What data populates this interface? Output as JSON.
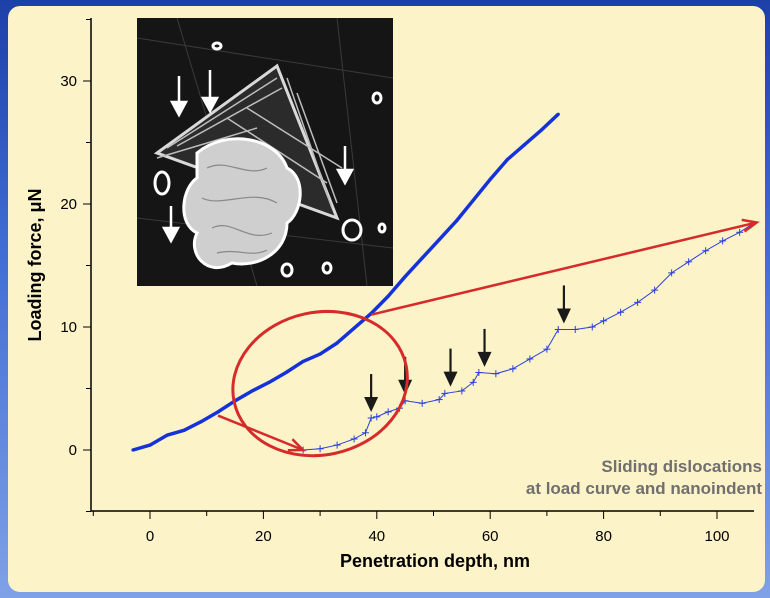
{
  "chart_data": {
    "type": "line",
    "xlabel": "Penetration depth, nm",
    "ylabel": "Loading force, μN",
    "xlim": [
      -10,
      107
    ],
    "ylim": [
      -5,
      35
    ],
    "x_ticks": [
      0,
      20,
      40,
      60,
      80,
      100
    ],
    "y_ticks": [
      0,
      10,
      20,
      30
    ],
    "grid": false,
    "series": [
      {
        "color": "#1432d8",
        "style": "solid-thick",
        "x": [
          -3,
          0,
          3,
          6,
          9,
          12,
          15,
          18,
          21,
          24,
          27,
          30,
          33,
          36,
          39,
          42,
          45,
          48,
          51,
          54,
          57,
          60,
          63,
          66,
          69,
          72
        ],
        "y": [
          0,
          0.4,
          1.2,
          1.6,
          2.3,
          3.1,
          4.0,
          4.8,
          5.5,
          6.3,
          7.2,
          7.8,
          8.7,
          9.9,
          11.1,
          12.5,
          14.1,
          15.6,
          17.1,
          18.6,
          20.3,
          22.0,
          23.6,
          24.8,
          26.0,
          27.3
        ]
      },
      {
        "color": "#2a3fe0",
        "style": "cross-markers",
        "x": [
          27,
          30,
          33,
          36,
          38,
          39,
          40,
          42,
          44,
          45,
          48,
          51,
          52,
          55,
          57,
          58,
          61,
          64,
          67,
          70,
          72,
          75,
          78,
          80,
          83,
          86,
          89,
          92,
          95,
          98,
          101,
          104,
          106
        ],
        "y": [
          0,
          0.1,
          0.4,
          0.9,
          1.4,
          2.6,
          2.7,
          3.1,
          3.4,
          4.0,
          3.8,
          4.1,
          4.6,
          4.8,
          5.5,
          6.3,
          6.2,
          6.6,
          7.4,
          8.2,
          9.8,
          9.8,
          10.0,
          10.5,
          11.2,
          12.0,
          13.0,
          14.4,
          15.3,
          16.2,
          17.0,
          17.7,
          18.3
        ]
      }
    ],
    "arrows_x": [
      39,
      45,
      53,
      59,
      73
    ],
    "highlight_ellipse": {
      "cx": 30,
      "cy": 5.4,
      "rx": 15.5,
      "ry": 5.8
    },
    "zoom_arrows": [
      {
        "from": [
          39,
          11
        ],
        "to": [
          107,
          18.5
        ]
      },
      {
        "from": [
          12,
          2.8
        ],
        "to": [
          27,
          0
        ]
      }
    ],
    "annotation": [
      "Sliding dislocations",
      "at load curve and nanoindent"
    ]
  }
}
